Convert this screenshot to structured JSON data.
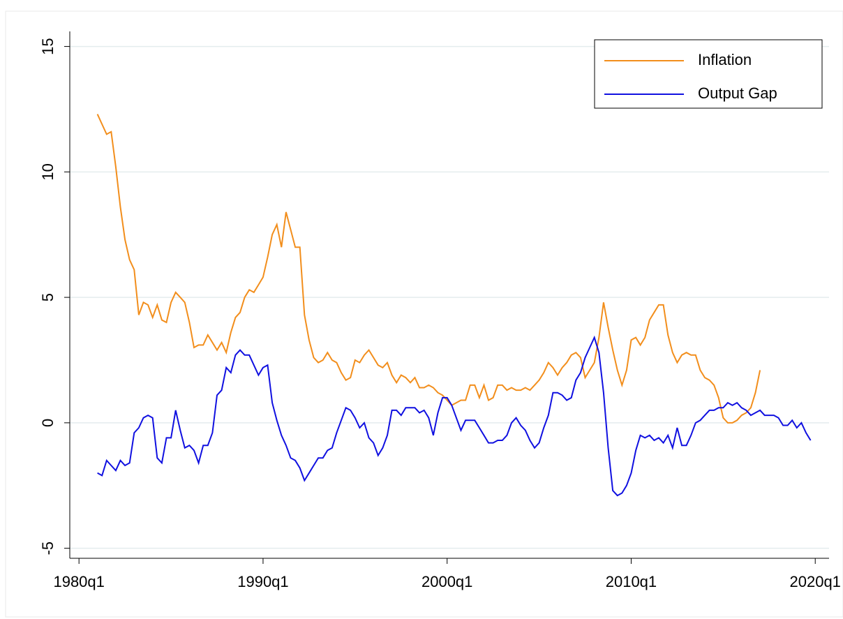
{
  "chart_data": {
    "type": "line",
    "x": [
      "1981q1",
      "1981q2",
      "1981q3",
      "1981q4",
      "1982q1",
      "1982q2",
      "1982q3",
      "1982q4",
      "1983q1",
      "1983q2",
      "1983q3",
      "1983q4",
      "1984q1",
      "1984q2",
      "1984q3",
      "1984q4",
      "1985q1",
      "1985q2",
      "1985q3",
      "1985q4",
      "1986q1",
      "1986q2",
      "1986q3",
      "1986q4",
      "1987q1",
      "1987q2",
      "1987q3",
      "1987q4",
      "1988q1",
      "1988q2",
      "1988q3",
      "1988q4",
      "1989q1",
      "1989q2",
      "1989q3",
      "1989q4",
      "1990q1",
      "1990q2",
      "1990q3",
      "1990q4",
      "1991q1",
      "1991q2",
      "1991q3",
      "1991q4",
      "1992q1",
      "1992q2",
      "1992q3",
      "1992q4",
      "1993q1",
      "1993q2",
      "1993q3",
      "1993q4",
      "1994q1",
      "1994q2",
      "1994q3",
      "1994q4",
      "1995q1",
      "1995q2",
      "1995q3",
      "1995q4",
      "1996q1",
      "1996q2",
      "1996q3",
      "1996q4",
      "1997q1",
      "1997q2",
      "1997q3",
      "1997q4",
      "1998q1",
      "1998q2",
      "1998q3",
      "1998q4",
      "1999q1",
      "1999q2",
      "1999q3",
      "1999q4",
      "2000q1",
      "2000q2",
      "2000q3",
      "2000q4",
      "2001q1",
      "2001q2",
      "2001q3",
      "2001q4",
      "2002q1",
      "2002q2",
      "2002q3",
      "2002q4",
      "2003q1",
      "2003q2",
      "2003q3",
      "2003q4",
      "2004q1",
      "2004q2",
      "2004q3",
      "2004q4",
      "2005q1",
      "2005q2",
      "2005q3",
      "2005q4",
      "2006q1",
      "2006q2",
      "2006q3",
      "2006q4",
      "2007q1",
      "2007q2",
      "2007q3",
      "2007q4",
      "2008q1",
      "2008q2",
      "2008q3",
      "2008q4",
      "2009q1",
      "2009q2",
      "2009q3",
      "2009q4",
      "2010q1",
      "2010q2",
      "2010q3",
      "2010q4",
      "2011q1",
      "2011q2",
      "2011q3",
      "2011q4",
      "2012q1",
      "2012q2",
      "2012q3",
      "2012q4",
      "2013q1",
      "2013q2",
      "2013q3",
      "2013q4",
      "2014q1",
      "2014q2",
      "2014q3",
      "2014q4",
      "2015q1",
      "2015q2",
      "2015q3",
      "2015q4",
      "2016q1",
      "2016q2",
      "2016q3",
      "2016q4",
      "2017q1",
      "2017q2",
      "2017q3",
      "2017q4",
      "2018q1",
      "2018q2",
      "2018q3",
      "2018q4",
      "2019q1",
      "2019q2",
      "2019q3",
      "2019q4"
    ],
    "series": [
      {
        "name": "Inflation",
        "color": "#f28e1c",
        "values": [
          12.3,
          11.9,
          11.5,
          11.6,
          10.2,
          8.6,
          7.3,
          6.5,
          6.1,
          4.3,
          4.8,
          4.7,
          4.2,
          4.7,
          4.1,
          4.0,
          4.8,
          5.2,
          5.0,
          4.8,
          4.0,
          3.0,
          3.1,
          3.1,
          3.5,
          3.2,
          2.9,
          3.2,
          2.8,
          3.6,
          4.2,
          4.4,
          5.0,
          5.3,
          5.2,
          5.5,
          5.8,
          6.6,
          7.5,
          7.9,
          7.0,
          8.4,
          7.7,
          7.0,
          7.0,
          4.3,
          3.3,
          2.6,
          2.4,
          2.5,
          2.8,
          2.5,
          2.4,
          2.0,
          1.7,
          1.8,
          2.5,
          2.4,
          2.7,
          2.9,
          2.6,
          2.3,
          2.2,
          2.4,
          1.9,
          1.6,
          1.9,
          1.8,
          1.6,
          1.8,
          1.4,
          1.4,
          1.5,
          1.4,
          1.2,
          1.1,
          0.9,
          0.7,
          0.8,
          0.9,
          0.9,
          1.5,
          1.5,
          1.0,
          1.5,
          0.9,
          1.0,
          1.5,
          1.5,
          1.3,
          1.4,
          1.3,
          1.3,
          1.4,
          1.3,
          1.5,
          1.7,
          2.0,
          2.4,
          2.2,
          1.9,
          2.2,
          2.4,
          2.7,
          2.8,
          2.6,
          1.8,
          2.1,
          2.4,
          3.4,
          4.8,
          3.8,
          2.9,
          2.1,
          1.5,
          2.1,
          3.3,
          3.4,
          3.1,
          3.4,
          4.1,
          4.4,
          4.7,
          4.7,
          3.5,
          2.8,
          2.4,
          2.7,
          2.8,
          2.7,
          2.7,
          2.1,
          1.8,
          1.7,
          1.5,
          1.0,
          0.2,
          0.0,
          0.0,
          0.1,
          0.3,
          0.4,
          0.6,
          1.2,
          2.1,
          null,
          null,
          null,
          null,
          null,
          null,
          null,
          null,
          null,
          null,
          null
        ]
      },
      {
        "name": "Output Gap",
        "color": "#1010e0",
        "values": [
          -2.0,
          -2.1,
          -1.5,
          -1.7,
          -1.9,
          -1.5,
          -1.7,
          -1.6,
          -0.4,
          -0.2,
          0.2,
          0.3,
          0.2,
          -1.4,
          -1.6,
          -0.6,
          -0.6,
          0.5,
          -0.3,
          -1.0,
          -0.9,
          -1.1,
          -1.6,
          -0.9,
          -0.9,
          -0.4,
          1.1,
          1.3,
          2.2,
          2.0,
          2.7,
          2.9,
          2.7,
          2.7,
          2.3,
          1.9,
          2.2,
          2.3,
          0.8,
          0.1,
          -0.5,
          -0.9,
          -1.4,
          -1.5,
          -1.8,
          -2.3,
          -2.0,
          -1.7,
          -1.4,
          -1.4,
          -1.1,
          -1.0,
          -0.4,
          0.1,
          0.6,
          0.5,
          0.2,
          -0.2,
          0.0,
          -0.6,
          -0.8,
          -1.3,
          -1.0,
          -0.5,
          0.5,
          0.5,
          0.3,
          0.6,
          0.6,
          0.6,
          0.4,
          0.5,
          0.2,
          -0.5,
          0.4,
          1.0,
          1.0,
          0.7,
          0.2,
          -0.3,
          0.1,
          0.1,
          0.1,
          -0.2,
          -0.5,
          -0.8,
          -0.8,
          -0.7,
          -0.7,
          -0.5,
          0.0,
          0.2,
          -0.1,
          -0.3,
          -0.7,
          -1.0,
          -0.8,
          -0.2,
          0.3,
          1.2,
          1.2,
          1.1,
          0.9,
          1.0,
          1.7,
          2.0,
          2.6,
          3.0,
          3.4,
          2.8,
          1.2,
          -1.0,
          -2.7,
          -2.9,
          -2.8,
          -2.5,
          -2.0,
          -1.1,
          -0.5,
          -0.6,
          -0.5,
          -0.7,
          -0.6,
          -0.8,
          -0.5,
          -1.0,
          -0.2,
          -0.9,
          -0.9,
          -0.5,
          0.0,
          0.1,
          0.3,
          0.5,
          0.5,
          0.6,
          0.6,
          0.8,
          0.7,
          0.8,
          0.6,
          0.5,
          0.3,
          0.4,
          0.5,
          0.3,
          0.3,
          0.3,
          0.2,
          -0.1,
          -0.1,
          0.1,
          -0.2,
          0.0,
          -0.4,
          -0.7
        ]
      }
    ],
    "xlim": [
      "1979q3",
      "2020q4"
    ],
    "xticks": [
      "1980q1",
      "1990q1",
      "2000q1",
      "2010q1",
      "2020q1"
    ],
    "ylim": [
      -5.4,
      15.6
    ],
    "yticks": [
      -5,
      0,
      5,
      10,
      15
    ],
    "grid": true,
    "legend": "top-right"
  }
}
